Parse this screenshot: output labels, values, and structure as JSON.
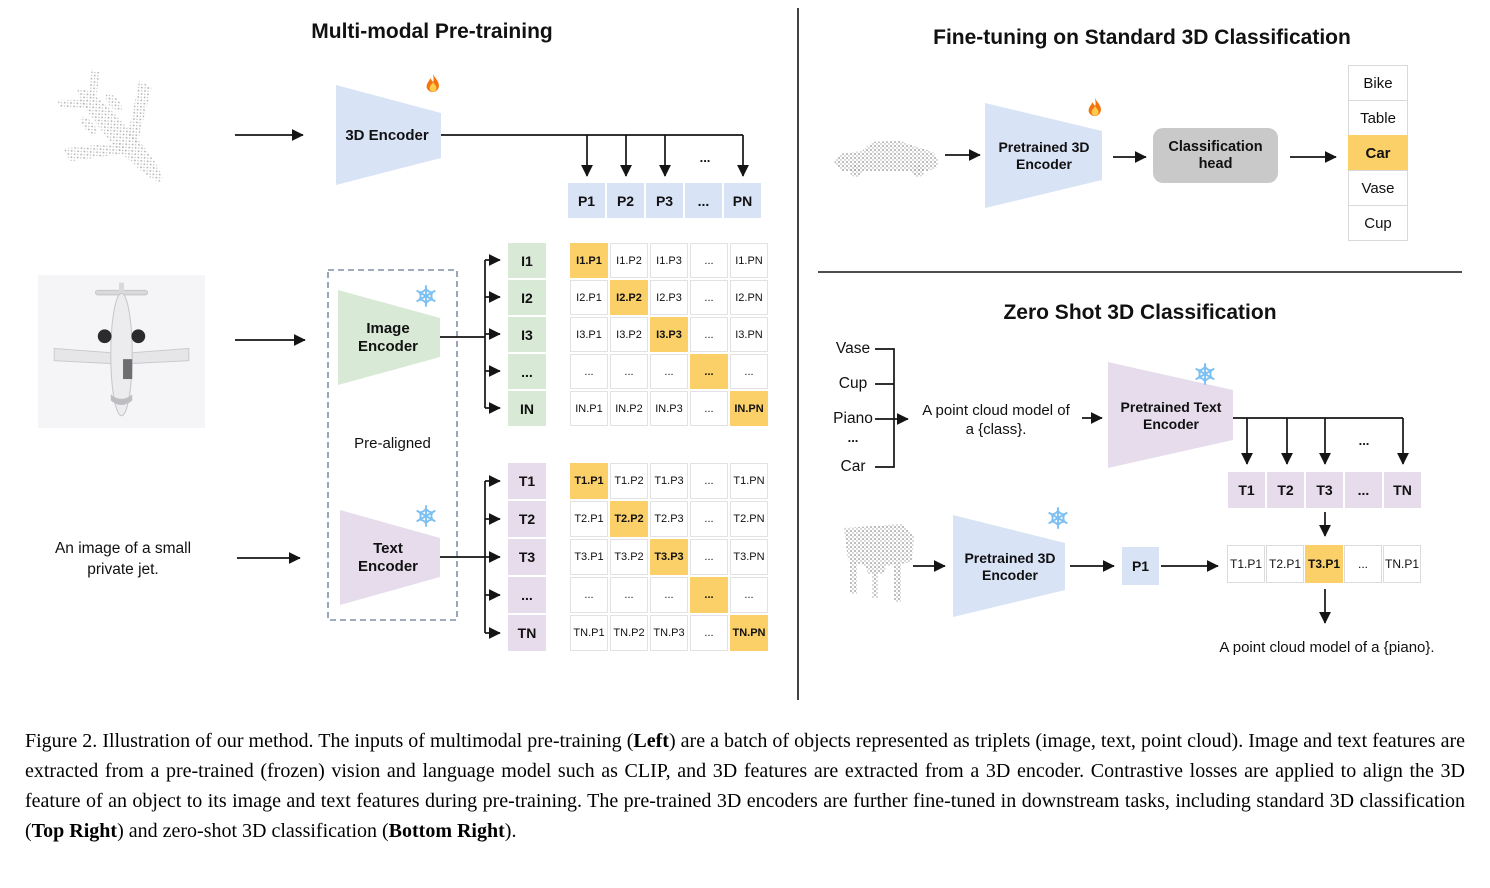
{
  "colors": {
    "blue_fill": "#d9e3f6",
    "green_fill": "#d8e9d6",
    "purple_fill": "#e6dcec",
    "orange_highlight": "#fbd069",
    "gray_box": "#c9c9c9",
    "cell_border": "#e2e2e2",
    "line": "#141414"
  },
  "left": {
    "title": "Multi-modal Pre-training",
    "encoder_3d": {
      "label": "3D Encoder",
      "state_icon": "fire-icon"
    },
    "image_encoder": {
      "label": "Image\nEncoder",
      "state_icon": "snowflake-icon"
    },
    "text_encoder": {
      "label": "Text\nEncoder",
      "state_icon": "snowflake-icon"
    },
    "prealigned_label": "Pre-aligned",
    "text_input": "An image of a small\nprivate jet.",
    "point_cloud_icon": "airplane-pointcloud-icon",
    "image_icon": "airplane-photo-icon",
    "dots_label": "...",
    "p_row": [
      "P1",
      "P2",
      "P3",
      "...",
      "PN"
    ],
    "image_rows": [
      "I1",
      "I2",
      "I3",
      "...",
      "IN"
    ],
    "text_rows": [
      "T1",
      "T2",
      "T3",
      "...",
      "TN"
    ],
    "image_matrix": [
      [
        "I1.P1",
        "I1.P2",
        "I1.P3",
        "...",
        "I1.PN"
      ],
      [
        "I2.P1",
        "I2.P2",
        "I2.P3",
        "...",
        "I2.PN"
      ],
      [
        "I3.P1",
        "I3.P2",
        "I3.P3",
        "...",
        "I3.PN"
      ],
      [
        "...",
        "...",
        "...",
        "...",
        "..."
      ],
      [
        "IN.P1",
        "IN.P2",
        "IN.P3",
        "...",
        "IN.PN"
      ]
    ],
    "text_matrix": [
      [
        "T1.P1",
        "T1.P2",
        "T1.P3",
        "...",
        "T1.PN"
      ],
      [
        "T2.P1",
        "T2.P2",
        "T2.P3",
        "...",
        "T2.PN"
      ],
      [
        "T3.P1",
        "T3.P2",
        "T3.P3",
        "...",
        "T3.PN"
      ],
      [
        "...",
        "...",
        "...",
        "...",
        "..."
      ],
      [
        "TN.P1",
        "TN.P2",
        "TN.P3",
        "...",
        "TN.PN"
      ]
    ]
  },
  "top_right": {
    "title": "Fine-tuning on Standard 3D Classification",
    "encoder": {
      "label": "Pretrained 3D\nEncoder",
      "state_icon": "fire-icon"
    },
    "head": {
      "label": "Classification\nhead"
    },
    "point_cloud_icon": "car-pointcloud-icon",
    "classes": [
      {
        "label": "Bike",
        "highlight": false
      },
      {
        "label": "Table",
        "highlight": false
      },
      {
        "label": "Car",
        "highlight": true
      },
      {
        "label": "Vase",
        "highlight": false
      },
      {
        "label": "Cup",
        "highlight": false
      }
    ]
  },
  "bottom_right": {
    "title": "Zero Shot 3D Classification",
    "class_prompts": [
      "Vase",
      "Cup",
      "Piano",
      "...",
      "Car"
    ],
    "prompt_text": "A point cloud model of\na {class}.",
    "text_encoder": {
      "label": "Pretrained Text\nEncoder",
      "state_icon": "snowflake-icon"
    },
    "encoder_3d": {
      "label": "Pretrained 3D\nEncoder",
      "state_icon": "snowflake-icon"
    },
    "point_cloud_icon": "piano-pointcloud-icon",
    "p_box": "P1",
    "dots_label": "...",
    "t_row": [
      "T1",
      "T2",
      "T3",
      "...",
      "TN"
    ],
    "result_row": [
      {
        "label": "T1.P1",
        "highlight": false
      },
      {
        "label": "T2.P1",
        "highlight": false
      },
      {
        "label": "T3.P1",
        "highlight": true
      },
      {
        "label": "...",
        "highlight": false
      },
      {
        "label": "TN.P1",
        "highlight": false
      }
    ],
    "result_text": "A point cloud model of a {piano}."
  },
  "caption": {
    "segments": [
      {
        "text": "Figure 2. Illustration of our method. The inputs of multimodal pre-training (",
        "bold": false
      },
      {
        "text": "Left",
        "bold": true
      },
      {
        "text": ") are a batch of objects represented as triplets (image, text, point cloud). Image and text features are extracted from a pre-trained (frozen) vision and language model such as CLIP, and 3D features are extracted from a 3D encoder. Contrastive losses are applied to align the 3D feature of an object to its image and text features during pre-training. The pre-trained 3D encoders are further fine-tuned in downstream tasks, including standard 3D classification (",
        "bold": false
      },
      {
        "text": "Top Right",
        "bold": true
      },
      {
        "text": ") and zero-shot 3D classification (",
        "bold": false
      },
      {
        "text": "Bottom Right",
        "bold": true
      },
      {
        "text": ").",
        "bold": false
      }
    ]
  }
}
